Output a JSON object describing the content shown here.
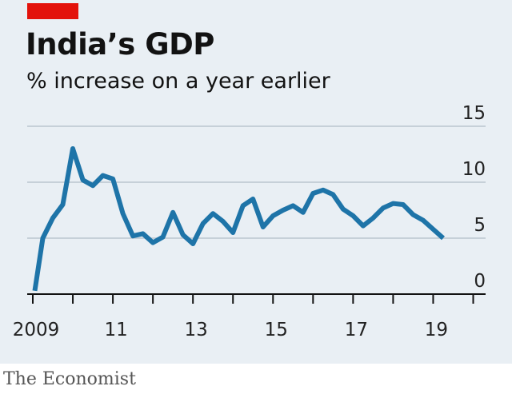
{
  "header": {
    "title": "India’s GDP",
    "subtitle": "% increase on a year earlier"
  },
  "footer": {
    "source": "The Economist"
  },
  "colors": {
    "accent": "#e3120b",
    "line": "#1e74a8",
    "grid": "#c6d0d8",
    "axis": "#121212"
  },
  "chart_data": {
    "type": "line",
    "x_label_ticks": [
      "2009",
      "11",
      "13",
      "15",
      "17",
      "19"
    ],
    "x_tick_years": [
      2009,
      2010,
      2011,
      2012,
      2013,
      2014,
      2015,
      2016,
      2017,
      2018,
      2019,
      2020
    ],
    "xlim": [
      2008.9,
      2020.25
    ],
    "y_ticks": [
      0,
      5,
      10,
      15
    ],
    "ylim": [
      0,
      15
    ],
    "grid": true,
    "y_axis_position": "right",
    "series": [
      {
        "x": [
          2009.05,
          2009.25,
          2009.5,
          2009.75,
          2010.0,
          2010.25,
          2010.5,
          2010.75,
          2011.0,
          2011.25,
          2011.5,
          2011.75,
          2012.0,
          2012.25,
          2012.5,
          2012.75,
          2013.0,
          2013.25,
          2013.5,
          2013.75,
          2014.0,
          2014.25,
          2014.5,
          2014.75,
          2015.0,
          2015.25,
          2015.5,
          2015.75,
          2016.0,
          2016.25,
          2016.5,
          2016.75,
          2017.0,
          2017.25,
          2017.5,
          2017.75,
          2018.0,
          2018.25,
          2018.5,
          2018.75,
          2019.0,
          2019.25
        ],
        "values": [
          0.3,
          5.0,
          6.8,
          8.0,
          13.0,
          10.2,
          9.7,
          10.6,
          10.3,
          7.2,
          5.2,
          5.4,
          4.6,
          5.1,
          7.3,
          5.3,
          4.5,
          6.3,
          7.2,
          6.5,
          5.5,
          7.9,
          8.5,
          6.0,
          7.0,
          7.5,
          7.9,
          7.3,
          9.0,
          9.3,
          8.9,
          7.6,
          7.0,
          6.1,
          6.8,
          7.7,
          8.1,
          8.0,
          7.1,
          6.6,
          5.8,
          5.0
        ]
      }
    ]
  }
}
